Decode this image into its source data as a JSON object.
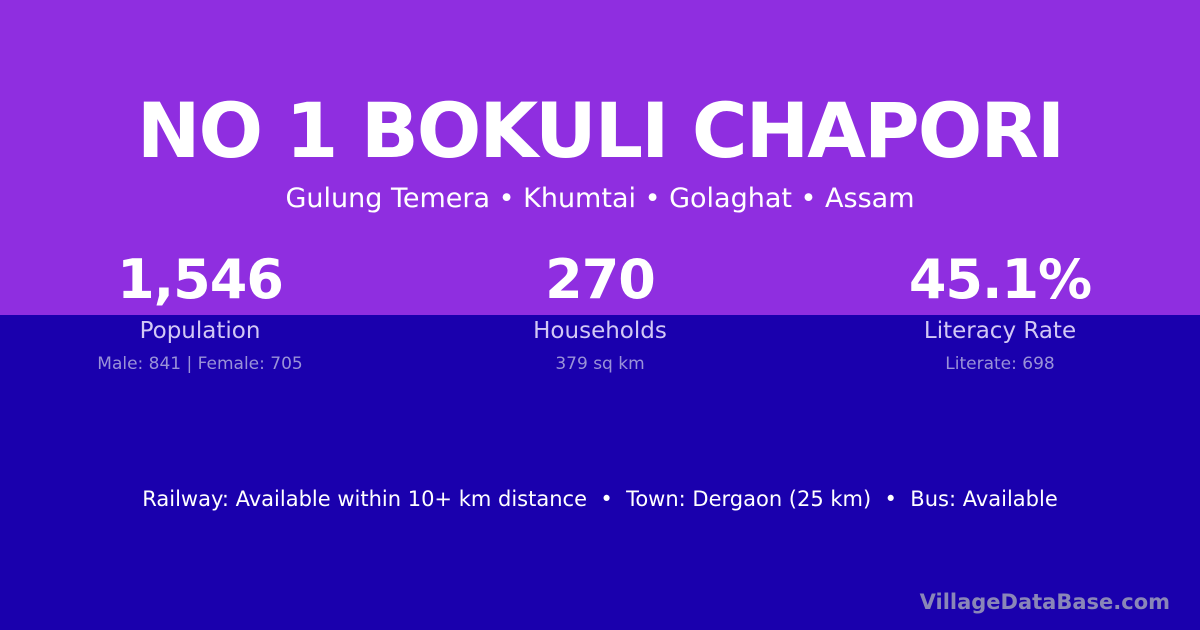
{
  "title": "NO 1 BOKULI CHAPORI",
  "subtitle": "Gulung Temera • Khumtai • Golaghat • Assam",
  "stats": [
    {
      "value": "1,546",
      "label": "Population",
      "detail": "Male: 841 | Female: 705"
    },
    {
      "value": "270",
      "label": "Households",
      "detail": "379 sq km"
    },
    {
      "value": "45.1%",
      "label": "Literacy Rate",
      "detail": "Literate: 698"
    }
  ],
  "facts": "Railway: Available within 10+ km distance  •  Town: Dergaon (25 km)  •  Bus: Available",
  "brand": "VillageDataBase.com",
  "colors": {
    "top": "#8f2ee0",
    "bottom": "#1a00ad"
  }
}
